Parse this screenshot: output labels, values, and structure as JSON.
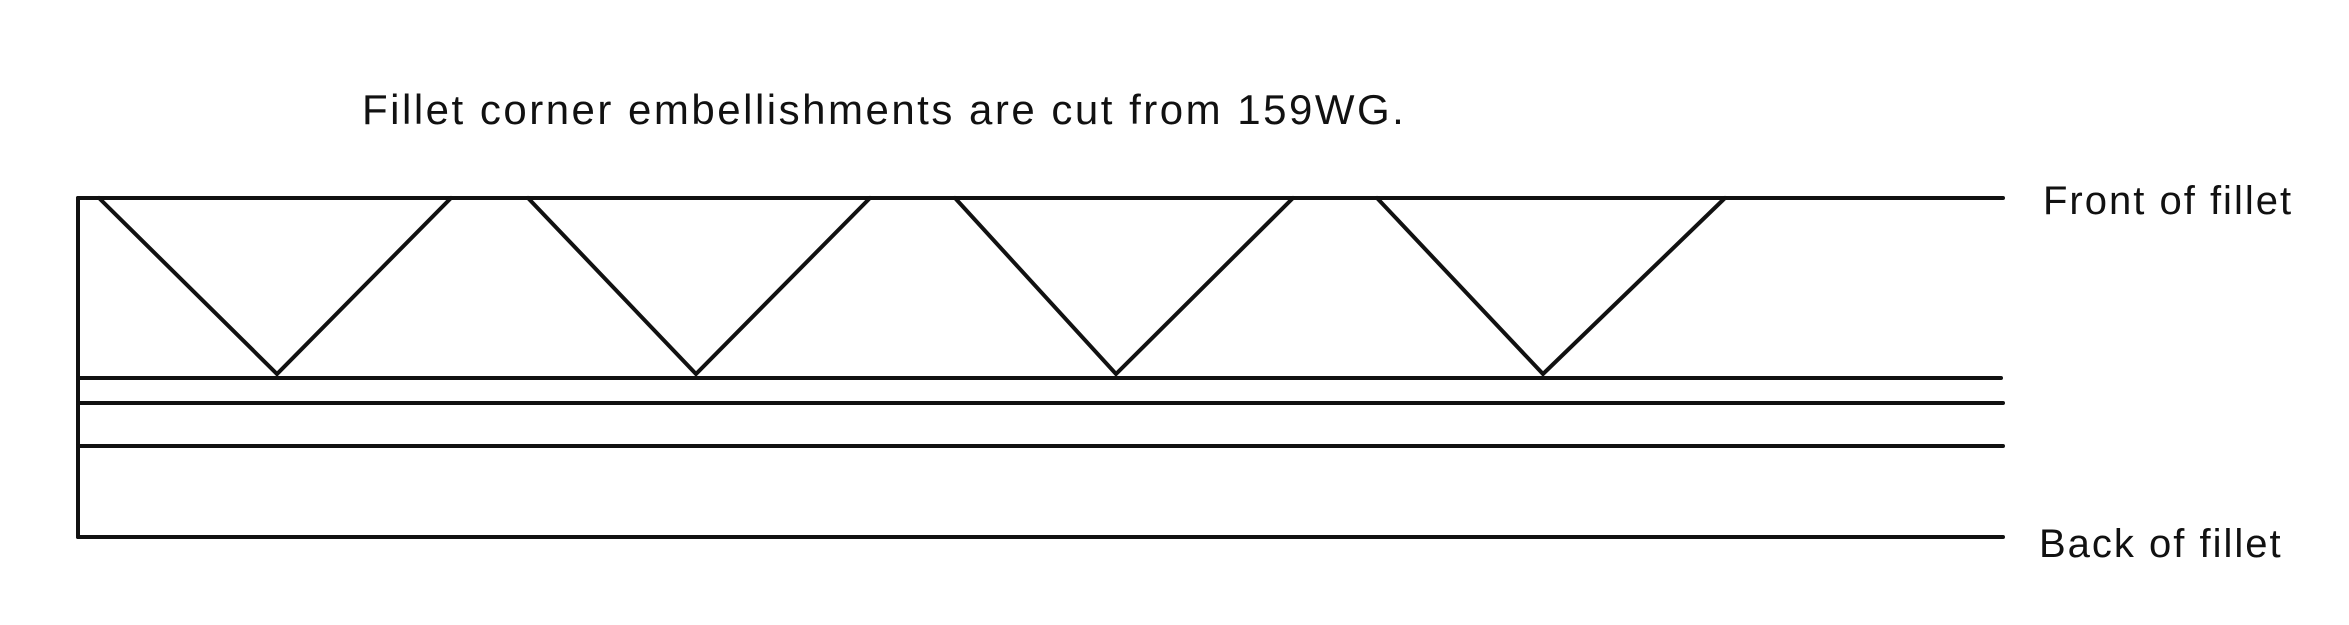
{
  "caption": "Fillet corner embellishments are cut from 159WG.",
  "labels": {
    "front": "Front of fillet",
    "back": "Back of fillet"
  },
  "diagram": {
    "embellishment_count": 4,
    "inner_line_count": 3,
    "line_color": "#111111"
  }
}
